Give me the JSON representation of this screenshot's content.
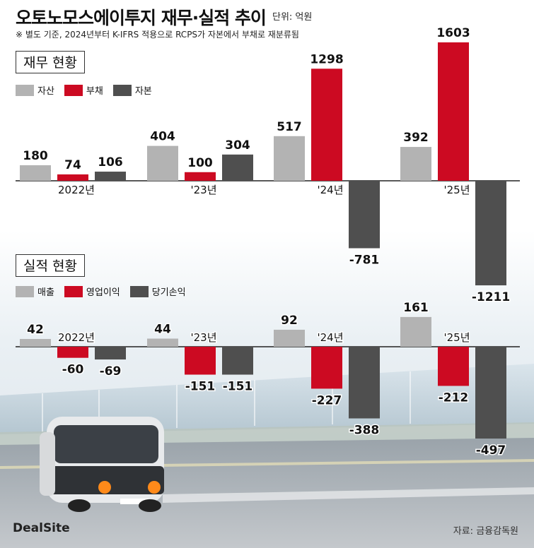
{
  "header": {
    "title": "오토노모스에이투지 재무·실적 추이",
    "unit": "단위: 억원",
    "note": "※ 별도 기준, 2024년부터 K-IFRS 적용으로 RCPS가 자본에서 부채로 재분류됨"
  },
  "footer": {
    "credit": "DealSite",
    "source": "자료: 금융감독원"
  },
  "colors": {
    "gray": "#b3b3b3",
    "red": "#cc0a22",
    "dark": "#4f4f4f"
  },
  "chart_data": [
    {
      "type": "bar",
      "title": "재무 현황",
      "categories": [
        "2022년",
        "'23년",
        "'24년",
        "'25년"
      ],
      "series": [
        {
          "name": "자산",
          "color": "#b3b3b3",
          "values": [
            180,
            404,
            517,
            392
          ]
        },
        {
          "name": "부채",
          "color": "#cc0a22",
          "values": [
            74,
            100,
            1298,
            1603
          ]
        },
        {
          "name": "자본",
          "color": "#4f4f4f",
          "values": [
            106,
            304,
            -781,
            -1211
          ]
        }
      ]
    },
    {
      "type": "bar",
      "title": "실적 현황",
      "categories": [
        "2022년",
        "'23년",
        "'24년",
        "'25년"
      ],
      "series": [
        {
          "name": "매출",
          "color": "#b3b3b3",
          "values": [
            42,
            44,
            92,
            161
          ]
        },
        {
          "name": "영업이익",
          "color": "#cc0a22",
          "values": [
            -60,
            -151,
            -227,
            -212
          ]
        },
        {
          "name": "당기손익",
          "color": "#4f4f4f",
          "values": [
            -69,
            -151,
            -388,
            -497
          ]
        }
      ]
    }
  ]
}
